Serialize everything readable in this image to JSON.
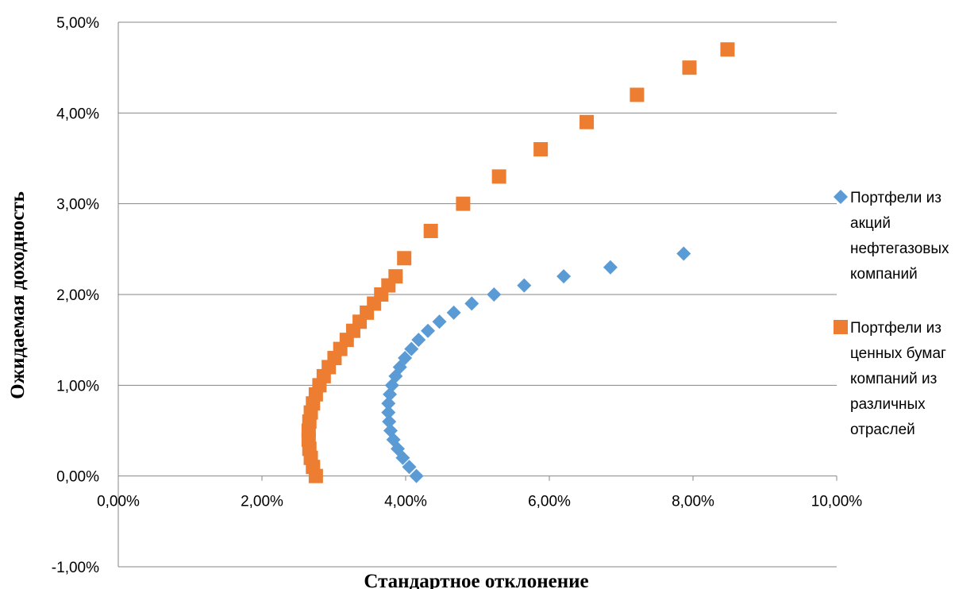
{
  "chart_data": {
    "type": "scatter",
    "title": "",
    "xlabel": "Стандартное отклонение",
    "ylabel": "Ожидаемая доходность",
    "xlim": [
      0,
      0.1
    ],
    "ylim": [
      -0.01,
      0.05
    ],
    "x_ticks": [
      "0,00%",
      "2,00%",
      "4,00%",
      "6,00%",
      "8,00%",
      "10,00%"
    ],
    "y_ticks": [
      "-1,00%",
      "0,00%",
      "1,00%",
      "2,00%",
      "3,00%",
      "4,00%",
      "5,00%"
    ],
    "grid": "horizontal",
    "legend_position": "right",
    "series": [
      {
        "name": "Портфели из акций нефтегазовых компаний",
        "legend_lines": [
          "Портфели из",
          "акций",
          "нефтегазовых",
          "компаний"
        ],
        "marker": "diamond",
        "color": "#5B9BD5",
        "x": [
          0.0415,
          0.0405,
          0.0396,
          0.0389,
          0.0383,
          0.0379,
          0.0377,
          0.0376,
          0.0376,
          0.0378,
          0.0381,
          0.0386,
          0.0392,
          0.0399,
          0.0408,
          0.0418,
          0.0431,
          0.0447,
          0.0467,
          0.0492,
          0.0523,
          0.0565,
          0.062,
          0.0685,
          0.0787
        ],
        "y": [
          0.0,
          0.001,
          0.002,
          0.003,
          0.004,
          0.005,
          0.006,
          0.007,
          0.008,
          0.009,
          0.01,
          0.011,
          0.012,
          0.013,
          0.014,
          0.015,
          0.016,
          0.017,
          0.018,
          0.019,
          0.02,
          0.021,
          0.022,
          0.023,
          0.0245
        ]
      },
      {
        "name": "Портфели из ценных бумаг компаний из различных отраслей",
        "legend_lines": [
          "Портфели из",
          "ценных бумаг",
          "компаний из",
          "различных",
          "отраслей"
        ],
        "marker": "square",
        "color": "#ED7D31",
        "x": [
          0.0275,
          0.0271,
          0.0268,
          0.0266,
          0.0265,
          0.0265,
          0.0266,
          0.0268,
          0.0271,
          0.0275,
          0.028,
          0.0286,
          0.0293,
          0.0301,
          0.0309,
          0.0318,
          0.0327,
          0.0336,
          0.0346,
          0.0356,
          0.0366,
          0.0376,
          0.0386,
          0.0398,
          0.0435,
          0.048,
          0.053,
          0.0588,
          0.0652,
          0.0722,
          0.0795,
          0.0848
        ],
        "y": [
          0.0,
          0.001,
          0.002,
          0.003,
          0.004,
          0.005,
          0.006,
          0.007,
          0.008,
          0.009,
          0.01,
          0.011,
          0.012,
          0.013,
          0.014,
          0.015,
          0.016,
          0.017,
          0.018,
          0.019,
          0.02,
          0.021,
          0.022,
          0.024,
          0.027,
          0.03,
          0.033,
          0.036,
          0.039,
          0.042,
          0.045,
          0.047
        ]
      }
    ]
  }
}
